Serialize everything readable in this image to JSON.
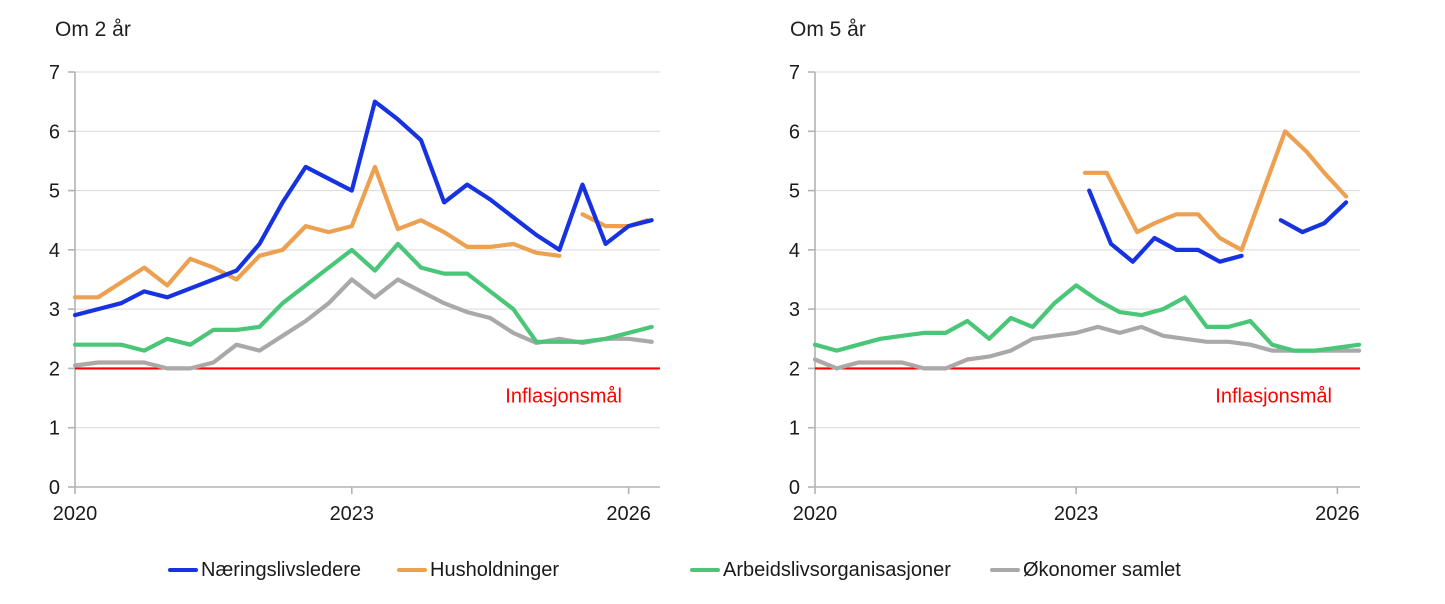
{
  "colors": {
    "blue": "#1733e1",
    "orange": "#eda04f",
    "green": "#49c677",
    "gray": "#a9a9a9",
    "target_red": "#fe0000",
    "text": "#1a1a1a",
    "grid": "#d9d9d9",
    "axis": "#b3b3b3"
  },
  "legend": {
    "items": [
      {
        "label": "Næringslivsledere",
        "color": "blue"
      },
      {
        "label": "Husholdninger",
        "color": "orange"
      },
      {
        "label": "Arbeidslivsorganisasjoner",
        "color": "green"
      },
      {
        "label": "Økonomer samlet",
        "color": "gray"
      }
    ]
  },
  "chart_data": [
    {
      "type": "line",
      "title": "Om 2 år",
      "ylim": [
        0,
        7
      ],
      "y_ticks": [
        "0",
        "1",
        "2",
        "3",
        "4",
        "5",
        "6",
        "7"
      ],
      "x_ticks": [
        "2020",
        "2023",
        "2026"
      ],
      "grid": true,
      "x_unit": "quarterly",
      "target_line": {
        "value": 2,
        "label": "Inflasjonsmål"
      },
      "series": [
        {
          "name": "Økonomer samlet",
          "color": "gray",
          "segments": [
            {
              "x_start": 2020.0,
              "x_step": 0.25,
              "values": [
                2.05,
                2.1,
                2.1,
                2.1,
                2.0,
                2.0,
                2.1,
                2.4,
                2.3,
                2.55,
                2.8,
                3.1,
                3.5,
                3.2,
                3.5,
                3.3,
                3.1,
                2.95,
                2.85,
                2.6,
                2.43,
                2.5,
                2.43,
                2.5,
                2.5,
                2.45
              ]
            }
          ]
        },
        {
          "name": "Arbeidslivsorganisasjoner",
          "color": "green",
          "segments": [
            {
              "x_start": 2020.0,
              "x_step": 0.25,
              "values": [
                2.4,
                2.4,
                2.4,
                2.3,
                2.5,
                2.4,
                2.65,
                2.65,
                2.7,
                3.1,
                3.4,
                3.7,
                4.0,
                3.65,
                4.1,
                3.7,
                3.6,
                3.6,
                3.3,
                3.0,
                2.45,
                2.45,
                2.45,
                2.5,
                2.6,
                2.7
              ]
            }
          ]
        },
        {
          "name": "Husholdninger",
          "color": "orange",
          "segments": [
            {
              "x_start": 2020.0,
              "x_step": 0.25,
              "values": [
                3.2,
                3.2,
                3.45,
                3.7,
                3.4,
                3.85,
                3.7,
                3.5,
                3.9,
                4.0,
                4.4,
                4.3,
                4.4,
                5.4,
                4.35,
                4.5,
                4.3,
                4.05,
                4.05,
                4.1,
                3.95,
                3.9
              ]
            },
            {
              "x": [
                2025.5,
                2025.75,
                2026.0,
                2026.2
              ],
              "values": [
                4.6,
                4.4,
                4.4,
                4.5
              ]
            }
          ]
        },
        {
          "name": "Næringslivsledere",
          "color": "blue",
          "segments": [
            {
              "x_start": 2020.0,
              "x_step": 0.25,
              "values": [
                2.9,
                3.0,
                3.1,
                3.3,
                3.2,
                3.35,
                3.5,
                3.65,
                4.1,
                4.8,
                5.4,
                5.2,
                5.0,
                6.5,
                6.2,
                5.85,
                4.8,
                5.1,
                4.85,
                4.55,
                4.25,
                4.0,
                5.1,
                4.1,
                4.4,
                4.5
              ]
            }
          ]
        }
      ]
    },
    {
      "type": "line",
      "title": "Om 5 år",
      "ylim": [
        0,
        7
      ],
      "y_ticks": [
        "0",
        "1",
        "2",
        "3",
        "4",
        "5",
        "6",
        "7"
      ],
      "x_ticks": [
        "2020",
        "2023",
        "2026"
      ],
      "grid": true,
      "x_unit": "quarterly",
      "target_line": {
        "value": 2,
        "label": "Inflasjonsmål"
      },
      "series": [
        {
          "name": "Økonomer samlet",
          "color": "gray",
          "segments": [
            {
              "x_start": 2020.0,
              "x_step": 0.25,
              "values": [
                2.15,
                2.0,
                2.1,
                2.1,
                2.1,
                2.0,
                2.0,
                2.15,
                2.2,
                2.3,
                2.5,
                2.55,
                2.6,
                2.7,
                2.6,
                2.7,
                2.55,
                2.5,
                2.45,
                2.45,
                2.4,
                2.3,
                2.3,
                2.3,
                2.3,
                2.3
              ]
            }
          ]
        },
        {
          "name": "Arbeidslivsorganisasjoner",
          "color": "green",
          "segments": [
            {
              "x_start": 2020.0,
              "x_step": 0.25,
              "values": [
                2.4,
                2.3,
                2.4,
                2.5,
                2.55,
                2.6,
                2.6,
                2.8,
                2.5,
                2.85,
                2.7,
                3.1,
                3.4,
                3.15,
                2.95,
                2.9,
                3.0,
                3.2,
                2.7,
                2.7,
                2.8,
                2.4,
                2.3,
                2.3,
                2.35,
                2.4
              ]
            }
          ]
        },
        {
          "name": "Husholdninger",
          "color": "orange",
          "segments": [
            {
              "x": [
                2023.1,
                2023.35,
                2023.7,
                2023.9,
                2024.15,
                2024.4,
                2024.65,
                2024.9,
                2025.4,
                2025.65,
                2025.85,
                2026.1
              ],
              "values": [
                5.3,
                5.3,
                4.3,
                4.45,
                4.6,
                4.6,
                4.2,
                4.0,
                6.0,
                5.65,
                5.3,
                4.9
              ]
            }
          ]
        },
        {
          "name": "Næringslivsledere",
          "color": "blue",
          "segments": [
            {
              "x": [
                2023.15,
                2023.4,
                2023.65,
                2023.9,
                2024.15,
                2024.4,
                2024.65,
                2024.9
              ],
              "values": [
                5.0,
                4.1,
                3.8,
                4.2,
                4.0,
                4.0,
                3.8,
                3.9
              ]
            },
            {
              "x": [
                2025.35,
                2025.6,
                2025.85,
                2026.1
              ],
              "values": [
                4.5,
                4.3,
                4.45,
                4.8
              ]
            }
          ]
        }
      ]
    }
  ]
}
